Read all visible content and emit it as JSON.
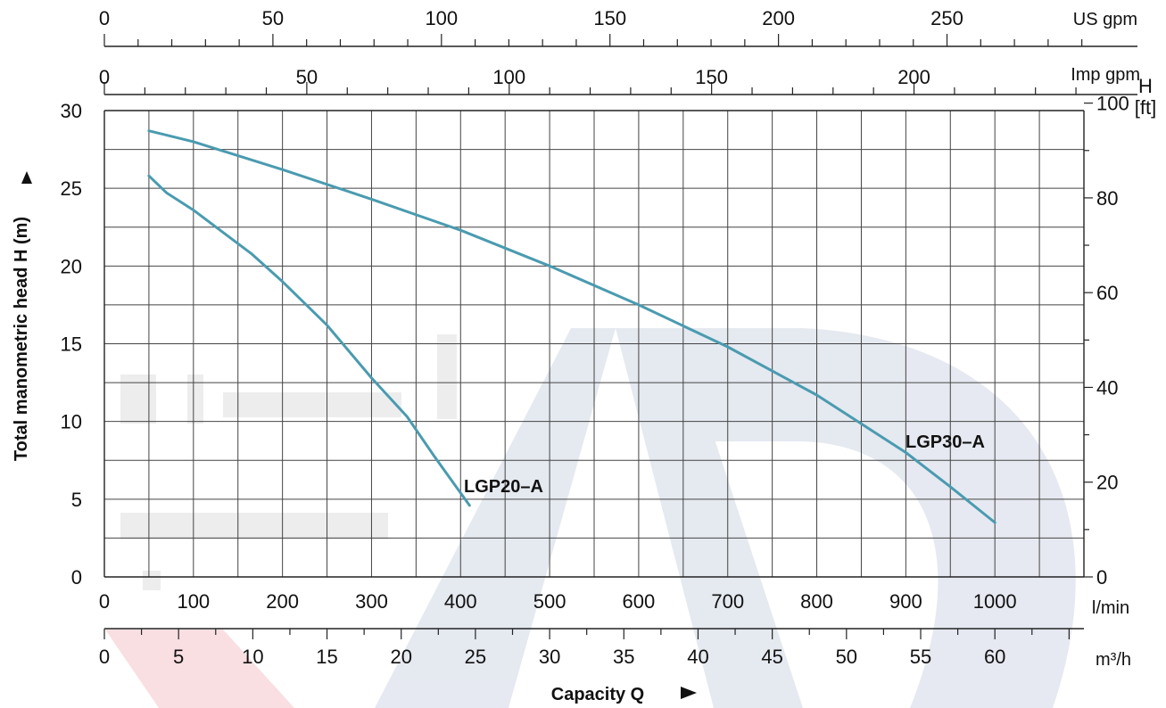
{
  "chart_data": {
    "type": "line",
    "title": "",
    "xlabel": "Capacity Q",
    "ylabel": "Total manometric head H (m)",
    "xlim": [
      0,
      1100
    ],
    "ylim": [
      0,
      30
    ],
    "grid": true,
    "x_ticks": [
      0,
      100,
      200,
      300,
      400,
      500,
      600,
      700,
      800,
      900,
      1000
    ],
    "x_unit": "l/min",
    "y_ticks": [
      0,
      5,
      10,
      15,
      20,
      25,
      30
    ],
    "right_axis": {
      "label": "H",
      "unit": "[ft]",
      "ticks": [
        0,
        20,
        40,
        60,
        80,
        100
      ]
    },
    "top_axis_us": {
      "unit": "US gpm",
      "ticks": [
        0,
        50,
        100,
        150,
        200,
        250
      ]
    },
    "top_axis_imp": {
      "unit": "Imp gpm",
      "ticks": [
        0,
        50,
        100,
        150,
        200
      ]
    },
    "bottom_axis_m3h": {
      "unit": "m³/h",
      "ticks": [
        0,
        5,
        10,
        15,
        20,
        25,
        30,
        35,
        40,
        45,
        50,
        55,
        60
      ]
    },
    "series": [
      {
        "name": "LGP20–A",
        "color": "#4a9bb0",
        "x": [
          50,
          70,
          100,
          130,
          165,
          200,
          250,
          300,
          340,
          370,
          410
        ],
        "y": [
          25.8,
          24.7,
          23.6,
          22.3,
          20.8,
          19.0,
          16.2,
          12.8,
          10.3,
          7.8,
          4.6
        ]
      },
      {
        "name": "LGP30–A",
        "color": "#4a9bb0",
        "x": [
          50,
          100,
          150,
          200,
          300,
          400,
          500,
          600,
          700,
          800,
          900,
          950,
          1000
        ],
        "y": [
          28.7,
          28.0,
          27.1,
          26.2,
          24.3,
          22.3,
          20.0,
          17.5,
          14.8,
          11.7,
          8.0,
          5.8,
          3.5
        ]
      }
    ]
  }
}
